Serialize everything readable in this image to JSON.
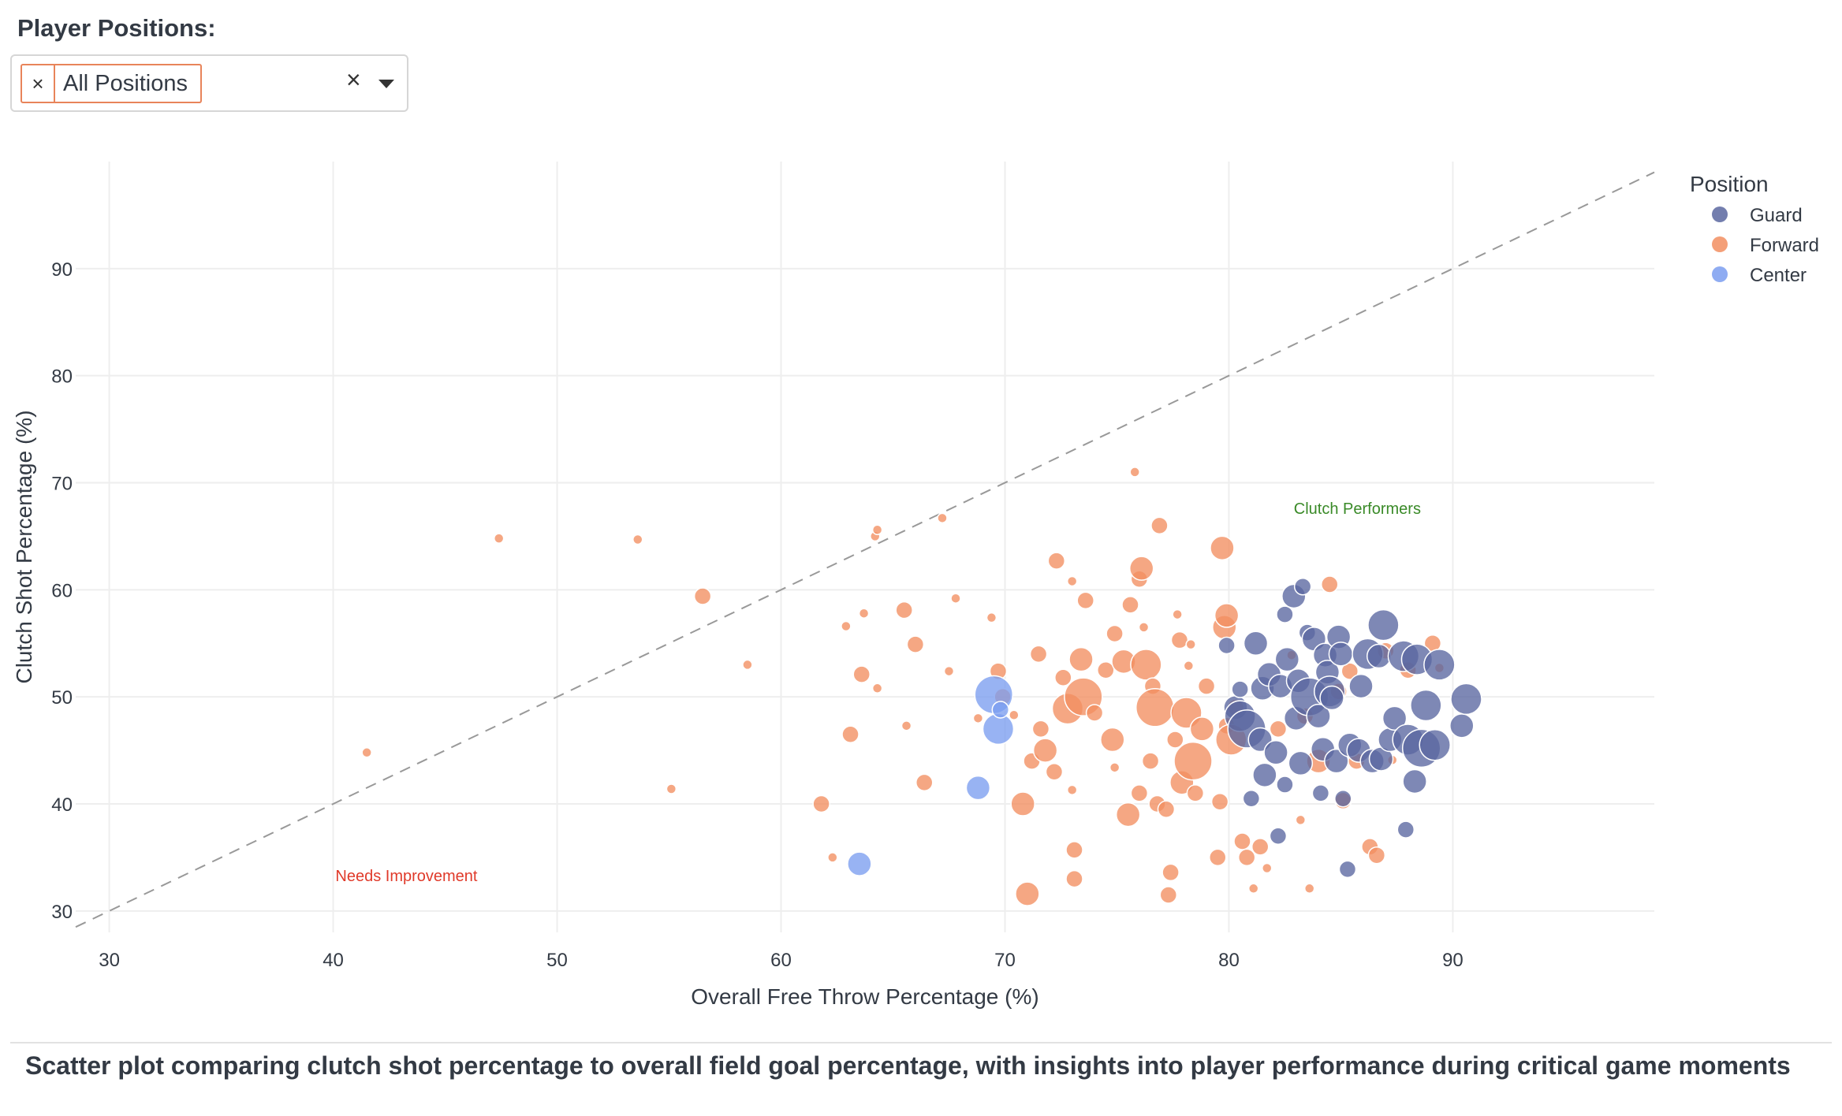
{
  "filter": {
    "label": "Player Positions:",
    "selected_chip": "All Positions",
    "chip_remove_glyph": "×",
    "clear_glyph": "×"
  },
  "caption": "Scatter plot comparing clutch shot percentage to overall field goal percentage, with insights into player performance during critical game moments",
  "colors": {
    "Guard": "#5a67a0",
    "Forward": "#f28e60",
    "Center": "#7b9ef0",
    "diagonal": "#999999",
    "annotation_good": "#3a8a28",
    "annotation_bad": "#e03a2a"
  },
  "chart_data": {
    "type": "scatter",
    "title": "",
    "xlabel": "Overall Free Throw Percentage (%)",
    "ylabel": "Clutch Shot Percentage (%)",
    "xlim": [
      28.5,
      99
    ],
    "ylim": [
      28,
      100
    ],
    "xticks": [
      30,
      40,
      50,
      60,
      70,
      80,
      90
    ],
    "yticks": [
      30,
      40,
      50,
      60,
      70,
      80,
      90
    ],
    "legend_title": "Position",
    "legend": [
      "Guard",
      "Forward",
      "Center"
    ],
    "legend_position": "top-right",
    "reference_line": "y = x",
    "annotations": [
      {
        "text": "Clutch Performers",
        "x": 82.9,
        "y": 67.1,
        "color_key": "annotation_good"
      },
      {
        "text": "Needs Improvement",
        "x": 40.1,
        "y": 32.8,
        "color_key": "annotation_bad"
      }
    ],
    "size_note": "marker size = relative weight (1-5)",
    "series": [
      {
        "name": "Forward",
        "points": [
          [
            41.5,
            44.8,
            1
          ],
          [
            47.4,
            64.8,
            1
          ],
          [
            53.6,
            64.7,
            1
          ],
          [
            55.1,
            41.4,
            1
          ],
          [
            56.5,
            59.4,
            2
          ],
          [
            58.5,
            53.0,
            1
          ],
          [
            61.8,
            40.0,
            2
          ],
          [
            62.3,
            35.0,
            1
          ],
          [
            62.9,
            56.6,
            1
          ],
          [
            63.1,
            46.5,
            2
          ],
          [
            63.6,
            52.1,
            2
          ],
          [
            63.7,
            57.8,
            1
          ],
          [
            64.2,
            65.0,
            1
          ],
          [
            64.3,
            65.6,
            1
          ],
          [
            64.3,
            50.8,
            1
          ],
          [
            65.5,
            58.1,
            2
          ],
          [
            65.6,
            47.3,
            1
          ],
          [
            66.0,
            54.9,
            2
          ],
          [
            66.4,
            42.0,
            2
          ],
          [
            67.2,
            66.7,
            1
          ],
          [
            67.5,
            52.4,
            1
          ],
          [
            67.8,
            59.2,
            1
          ],
          [
            68.8,
            48.0,
            1
          ],
          [
            69.4,
            57.4,
            1
          ],
          [
            69.7,
            52.4,
            2
          ],
          [
            69.9,
            50.0,
            2
          ],
          [
            70.4,
            48.3,
            1
          ],
          [
            70.8,
            40.0,
            3
          ],
          [
            71.0,
            31.6,
            3
          ],
          [
            71.2,
            44.0,
            2
          ],
          [
            71.5,
            54.0,
            2
          ],
          [
            71.6,
            47.0,
            2
          ],
          [
            71.8,
            45.0,
            3
          ],
          [
            72.2,
            43.0,
            2
          ],
          [
            72.3,
            62.7,
            2
          ],
          [
            72.6,
            51.8,
            2
          ],
          [
            72.8,
            48.9,
            4
          ],
          [
            73.0,
            60.8,
            1
          ],
          [
            73.0,
            41.3,
            1
          ],
          [
            73.1,
            35.7,
            2
          ],
          [
            73.1,
            33.0,
            2
          ],
          [
            73.4,
            53.5,
            3
          ],
          [
            73.5,
            50.0,
            5
          ],
          [
            73.6,
            59.0,
            2
          ],
          [
            74.0,
            48.5,
            2
          ],
          [
            74.5,
            52.5,
            2
          ],
          [
            74.8,
            46.0,
            3
          ],
          [
            74.9,
            43.4,
            1
          ],
          [
            74.9,
            55.9,
            2
          ],
          [
            75.3,
            53.3,
            3
          ],
          [
            75.5,
            39.0,
            3
          ],
          [
            75.6,
            58.6,
            2
          ],
          [
            75.8,
            71.0,
            1
          ],
          [
            76.0,
            41.0,
            2
          ],
          [
            76.0,
            61.0,
            2
          ],
          [
            76.1,
            62.0,
            3
          ],
          [
            76.2,
            56.5,
            1
          ],
          [
            76.3,
            53.0,
            4
          ],
          [
            76.5,
            44.0,
            2
          ],
          [
            76.6,
            51.0,
            2
          ],
          [
            76.7,
            49.0,
            5
          ],
          [
            76.8,
            40.0,
            2
          ],
          [
            76.9,
            66.0,
            2
          ],
          [
            77.2,
            39.5,
            2
          ],
          [
            77.3,
            31.5,
            2
          ],
          [
            77.4,
            33.6,
            2
          ],
          [
            77.6,
            46.0,
            2
          ],
          [
            77.7,
            57.7,
            1
          ],
          [
            77.8,
            55.3,
            2
          ],
          [
            77.9,
            42.0,
            3
          ],
          [
            78.1,
            48.5,
            4
          ],
          [
            78.2,
            52.9,
            1
          ],
          [
            78.3,
            54.9,
            1
          ],
          [
            78.4,
            44.0,
            5
          ],
          [
            78.5,
            41.0,
            2
          ],
          [
            78.8,
            47.0,
            3
          ],
          [
            79.0,
            51.0,
            2
          ],
          [
            79.5,
            35.0,
            2
          ],
          [
            79.6,
            40.2,
            2
          ],
          [
            79.7,
            63.9,
            3
          ],
          [
            79.8,
            56.5,
            3
          ],
          [
            79.9,
            57.6,
            3
          ],
          [
            79.9,
            47.3,
            2
          ],
          [
            80.1,
            46.0,
            4
          ],
          [
            80.3,
            49.0,
            2
          ],
          [
            80.6,
            36.5,
            2
          ],
          [
            80.8,
            35.0,
            2
          ],
          [
            81.1,
            32.1,
            1
          ],
          [
            81.4,
            36.0,
            2
          ],
          [
            81.7,
            34.0,
            1
          ],
          [
            82.2,
            47.0,
            2
          ],
          [
            82.8,
            53.9,
            1
          ],
          [
            83.2,
            38.5,
            1
          ],
          [
            83.4,
            48.2,
            2
          ],
          [
            83.6,
            32.1,
            1
          ],
          [
            84.0,
            44.0,
            3
          ],
          [
            84.5,
            60.5,
            2
          ],
          [
            84.9,
            50.5,
            2
          ],
          [
            85.1,
            40.3,
            2
          ],
          [
            85.4,
            52.4,
            2
          ],
          [
            85.7,
            44.0,
            2
          ],
          [
            86.3,
            36.0,
            2
          ],
          [
            86.6,
            35.2,
            2
          ],
          [
            87.0,
            54.3,
            2
          ],
          [
            87.3,
            44.1,
            1
          ],
          [
            88.0,
            52.5,
            2
          ],
          [
            89.1,
            55.0,
            2
          ],
          [
            89.4,
            52.7,
            1
          ]
        ]
      },
      {
        "name": "Guard",
        "points": [
          [
            79.9,
            54.8,
            2
          ],
          [
            80.3,
            49.0,
            3
          ],
          [
            80.5,
            50.7,
            2
          ],
          [
            80.5,
            48.2,
            4
          ],
          [
            80.8,
            47.0,
            5
          ],
          [
            81.0,
            40.5,
            2
          ],
          [
            81.2,
            55.0,
            3
          ],
          [
            81.4,
            46.0,
            3
          ],
          [
            81.5,
            50.8,
            3
          ],
          [
            81.6,
            42.7,
            3
          ],
          [
            81.8,
            52.1,
            3
          ],
          [
            82.1,
            44.8,
            3
          ],
          [
            82.2,
            37.0,
            2
          ],
          [
            82.3,
            51.0,
            3
          ],
          [
            82.5,
            41.8,
            2
          ],
          [
            82.5,
            57.7,
            2
          ],
          [
            82.6,
            53.5,
            3
          ],
          [
            82.9,
            59.4,
            3
          ],
          [
            83.0,
            48.0,
            3
          ],
          [
            83.1,
            51.5,
            3
          ],
          [
            83.2,
            43.8,
            3
          ],
          [
            83.3,
            60.3,
            2
          ],
          [
            83.5,
            56.0,
            2
          ],
          [
            83.6,
            50.0,
            5
          ],
          [
            83.8,
            55.4,
            3
          ],
          [
            84.0,
            48.2,
            3
          ],
          [
            84.1,
            41.0,
            2
          ],
          [
            84.2,
            45.1,
            3
          ],
          [
            84.3,
            53.9,
            3
          ],
          [
            84.4,
            52.3,
            3
          ],
          [
            84.5,
            50.5,
            4
          ],
          [
            84.6,
            49.9,
            3
          ],
          [
            84.8,
            44.0,
            3
          ],
          [
            84.9,
            55.6,
            3
          ],
          [
            85.0,
            54.0,
            3
          ],
          [
            85.1,
            40.5,
            2
          ],
          [
            85.3,
            33.9,
            2
          ],
          [
            85.4,
            45.5,
            3
          ],
          [
            85.8,
            45.0,
            3
          ],
          [
            85.9,
            51.0,
            3
          ],
          [
            86.2,
            54.0,
            4
          ],
          [
            86.4,
            44.0,
            3
          ],
          [
            86.7,
            53.8,
            3
          ],
          [
            86.8,
            44.2,
            3
          ],
          [
            86.9,
            56.7,
            4
          ],
          [
            87.2,
            46.0,
            3
          ],
          [
            87.4,
            48.0,
            3
          ],
          [
            87.8,
            53.8,
            4
          ],
          [
            87.9,
            37.6,
            2
          ],
          [
            88.0,
            46.0,
            4
          ],
          [
            88.3,
            42.1,
            3
          ],
          [
            88.4,
            53.5,
            4
          ],
          [
            88.6,
            45.2,
            5
          ],
          [
            88.8,
            49.2,
            4
          ],
          [
            89.2,
            45.5,
            4
          ],
          [
            89.4,
            53.0,
            4
          ],
          [
            90.4,
            47.3,
            3
          ],
          [
            90.6,
            49.8,
            4
          ]
        ]
      },
      {
        "name": "Center",
        "points": [
          [
            63.5,
            34.4,
            3
          ],
          [
            68.8,
            41.5,
            3
          ],
          [
            69.5,
            50.2,
            5
          ],
          [
            69.7,
            47.0,
            4
          ],
          [
            69.8,
            48.8,
            2
          ]
        ]
      }
    ]
  }
}
